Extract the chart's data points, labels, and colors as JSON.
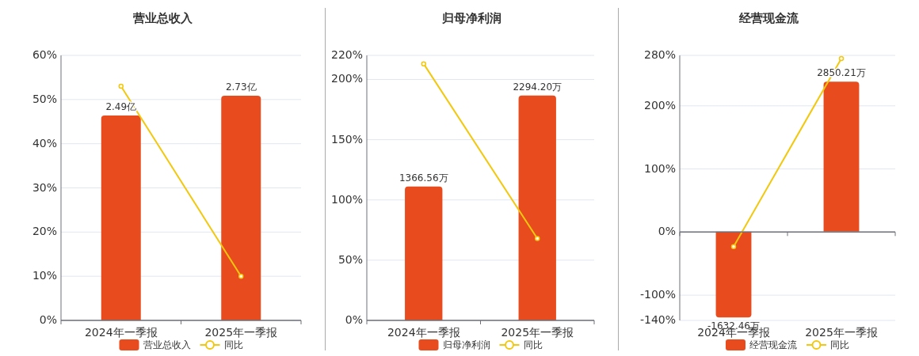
{
  "chart_data": [
    {
      "type": "bar",
      "title": "营业总收入",
      "categories": [
        "2024年一季报",
        "2025年一季报"
      ],
      "series": [
        {
          "name": "营业总收入",
          "axis": "y2",
          "color": "#e84c1e",
          "values": [
            2.49,
            2.73
          ],
          "value_labels": [
            "2.49亿",
            "2.73亿"
          ]
        },
        {
          "name": "同比",
          "type": "line",
          "color": "#f2c80f",
          "values": [
            53,
            10
          ]
        }
      ],
      "ylim": [
        0,
        60
      ],
      "yticks": [
        {
          "value": 0,
          "label": "0%"
        },
        {
          "value": 10,
          "label": "10%"
        },
        {
          "value": 20,
          "label": "20%"
        },
        {
          "value": 30,
          "label": "30%"
        },
        {
          "value": 40,
          "label": "40%"
        },
        {
          "value": 50,
          "label": "50%"
        },
        {
          "value": 60,
          "label": "60%"
        }
      ],
      "y2lim": [
        0,
        3.22
      ],
      "grid": "y",
      "legend": "bottom",
      "marker": "circle"
    },
    {
      "type": "bar",
      "title": "归母净利润",
      "categories": [
        "2024年一季报",
        "2025年一季报"
      ],
      "series": [
        {
          "name": "归母净利润",
          "axis": "y2",
          "color": "#e84c1e",
          "values": [
            1366.56,
            2294.2
          ],
          "value_labels": [
            "1366.56万",
            "2294.20万"
          ]
        },
        {
          "name": "同比",
          "type": "line",
          "color": "#f2c80f",
          "values": [
            213,
            68
          ]
        }
      ],
      "ylim": [
        0,
        220
      ],
      "yticks": [
        {
          "value": 0,
          "label": "0%"
        },
        {
          "value": 50,
          "label": "50%"
        },
        {
          "value": 100,
          "label": "100%"
        },
        {
          "value": 150,
          "label": "150%"
        },
        {
          "value": 200,
          "label": "200%"
        },
        {
          "value": 220,
          "label": "220%"
        }
      ],
      "y2lim": [
        0,
        2704
      ],
      "grid": "y",
      "legend": "bottom",
      "marker": "circle"
    },
    {
      "type": "bar",
      "title": "经营现金流",
      "categories": [
        "2024年一季报",
        "2025年一季报"
      ],
      "series": [
        {
          "name": "经营现金流",
          "axis": "y2",
          "color": "#e84c1e",
          "values": [
            -1632.46,
            2850.21
          ],
          "value_labels": [
            "-1632.46万",
            "2850.21万"
          ]
        },
        {
          "name": "同比",
          "type": "line",
          "color": "#f2c80f",
          "values": [
            -23,
            275
          ]
        }
      ],
      "ylim": [
        -140,
        280
      ],
      "yticks": [
        {
          "value": -140,
          "label": "-140%"
        },
        {
          "value": -100,
          "label": "-100%"
        },
        {
          "value": 0,
          "label": "0%"
        },
        {
          "value": 100,
          "label": "100%"
        },
        {
          "value": 200,
          "label": "200%"
        },
        {
          "value": 280,
          "label": "280%"
        }
      ],
      "y2lim": [
        -1690,
        3352
      ],
      "grid": "y",
      "legend": "bottom",
      "marker": "circle"
    }
  ]
}
